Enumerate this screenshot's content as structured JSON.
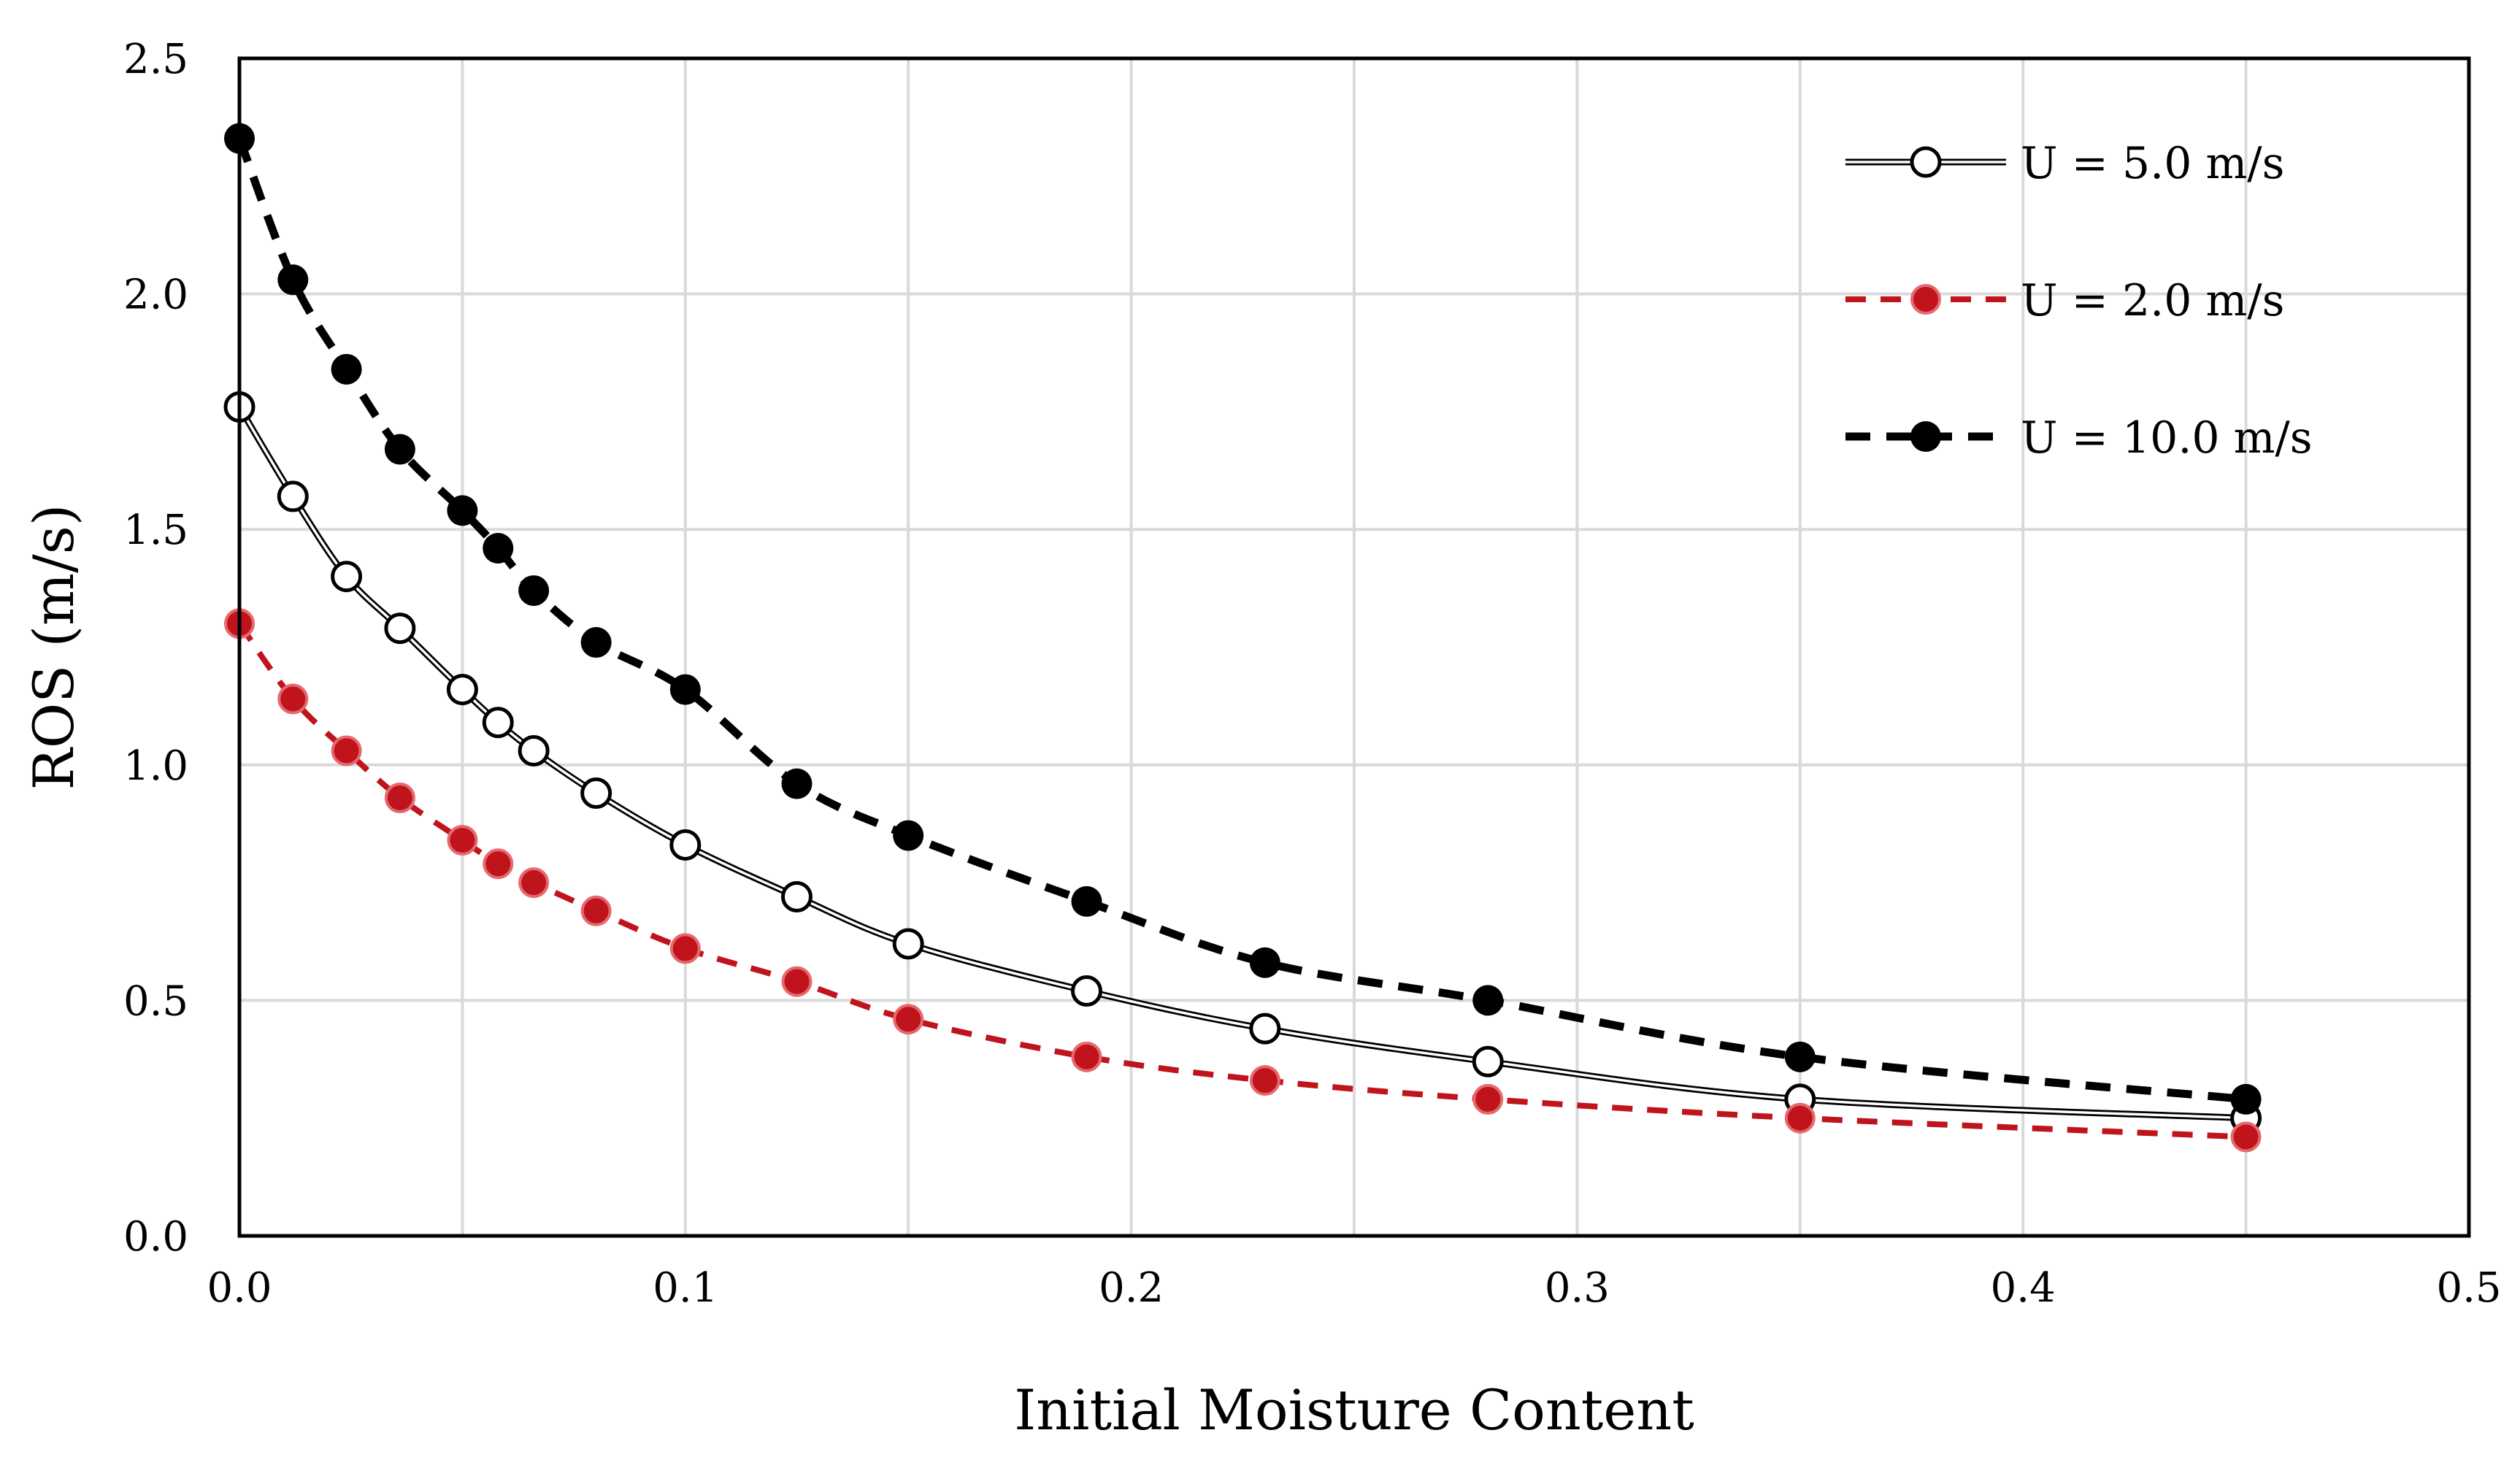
{
  "chart_data": {
    "type": "line",
    "title": "",
    "xlabel": "Initial Moisture Content",
    "ylabel": "ROS (m/s)",
    "xlim": [
      0,
      0.5
    ],
    "ylim": [
      0,
      2.5
    ],
    "x_ticks": [
      0.0,
      0.1,
      0.2,
      0.3,
      0.4,
      0.5
    ],
    "x_tick_labels": [
      "0.0",
      "0.1",
      "0.2",
      "0.3",
      "0.4",
      "0.5"
    ],
    "y_ticks": [
      0.0,
      0.5,
      1.0,
      1.5,
      2.0,
      2.5
    ],
    "y_tick_labels": [
      "0.0",
      "0.5",
      "1.0",
      "1.5",
      "2.0",
      "2.5"
    ],
    "grid": true,
    "legend_position": "top-right",
    "x": [
      0.0,
      0.012,
      0.024,
      0.036,
      0.05,
      0.058,
      0.066,
      0.08,
      0.1,
      0.125,
      0.15,
      0.19,
      0.23,
      0.28,
      0.35,
      0.45
    ],
    "series": [
      {
        "name": "U = 5.0 m/s",
        "style": "double-solid-open-circle",
        "color": "#000000",
        "values": [
          1.76,
          1.57,
          1.4,
          1.29,
          1.16,
          1.09,
          1.03,
          0.94,
          0.83,
          0.72,
          0.62,
          0.52,
          0.44,
          0.37,
          0.29,
          0.25
        ]
      },
      {
        "name": "U = 2.0 m/s",
        "style": "dashed-red-filled-circle",
        "color": "#c0141c",
        "values": [
          1.3,
          1.14,
          1.03,
          0.93,
          0.84,
          0.79,
          0.75,
          0.69,
          0.61,
          0.54,
          0.46,
          0.38,
          0.33,
          0.29,
          0.25,
          0.21
        ]
      },
      {
        "name": "U = 10.0 m/s",
        "style": "dashed-black-filled-circle",
        "color": "#000000",
        "values": [
          2.33,
          2.03,
          1.84,
          1.67,
          1.54,
          1.46,
          1.37,
          1.26,
          1.16,
          0.96,
          0.85,
          0.71,
          0.58,
          0.5,
          0.38,
          0.29
        ]
      }
    ]
  }
}
